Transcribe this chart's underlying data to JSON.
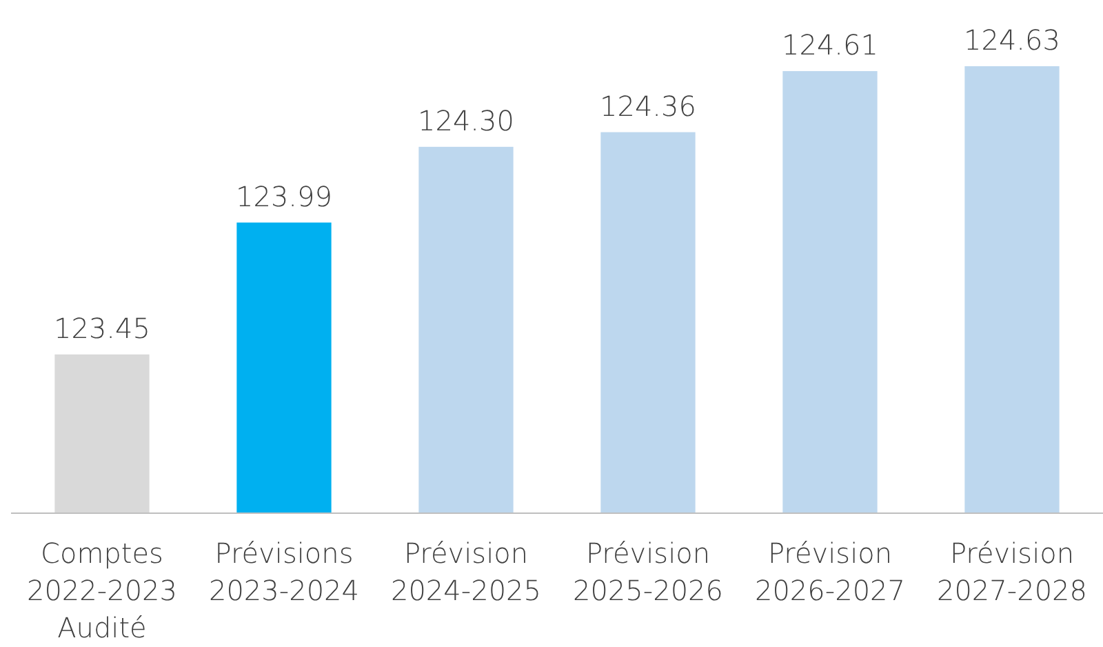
{
  "chart_data": {
    "type": "bar",
    "categories": [
      "Comptes\n2022-2023\nAudité",
      "Prévisions\n2023-2024",
      "Prévision\n2024-2025",
      "Prévision\n2025-2026",
      "Prévision\n2026-2027",
      "Prévision\n2027-2028"
    ],
    "values": [
      123.45,
      123.99,
      124.3,
      124.36,
      124.61,
      124.63
    ],
    "colors": [
      "#d9d9d9",
      "#00b0f0",
      "#bdd7ee",
      "#bdd7ee",
      "#bdd7ee",
      "#bdd7ee"
    ],
    "value_labels": [
      "123.45",
      "123.99",
      "124.30",
      "124.36",
      "124.61",
      "124.63"
    ],
    "ylim": [
      122.8,
      124.63
    ],
    "tick_labels": "x"
  }
}
